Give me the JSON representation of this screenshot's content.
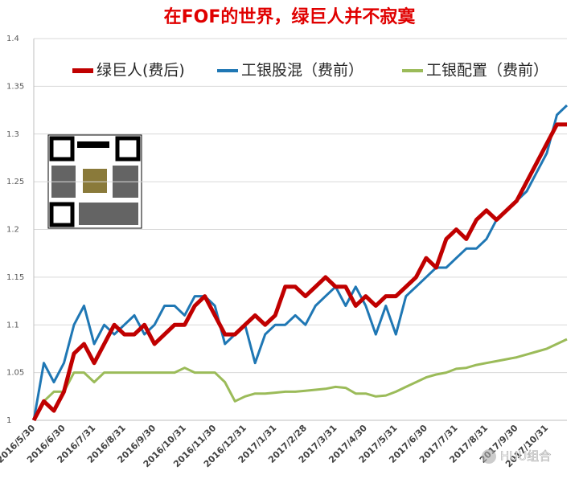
{
  "chart_data": {
    "type": "line",
    "title": "在FOF的世界，绿巨人并不寂寞",
    "watermark": "HUU组合",
    "x": [
      "2016/5/30",
      null,
      null,
      "2016/6/30",
      null,
      null,
      "2016/7/31",
      null,
      null,
      "2016/8/31",
      null,
      null,
      "2016/9/30",
      null,
      null,
      "2016/10/31",
      null,
      null,
      "2016/11/30",
      null,
      null,
      "2016/12/31",
      null,
      null,
      "2017/1/31",
      null,
      null,
      "2017/2/28",
      null,
      null,
      "2017/3/31",
      null,
      null,
      "2017/4/30",
      null,
      null,
      "2017/5/31",
      null,
      null,
      "2017/6/30",
      null,
      null,
      "2017/7/31",
      null,
      null,
      "2017/8/31",
      null,
      null,
      "2017/9/30",
      null,
      null,
      "2017/10/31",
      null,
      null
    ],
    "series": [
      {
        "name": "绿巨人(费后)",
        "color": "#c00000",
        "width": 5,
        "values": [
          1.0,
          1.02,
          1.01,
          1.03,
          1.07,
          1.08,
          1.06,
          1.08,
          1.1,
          1.09,
          1.09,
          1.1,
          1.08,
          1.09,
          1.1,
          1.1,
          1.12,
          1.13,
          1.11,
          1.09,
          1.09,
          1.1,
          1.11,
          1.1,
          1.11,
          1.14,
          1.14,
          1.13,
          1.14,
          1.15,
          1.14,
          1.14,
          1.12,
          1.13,
          1.12,
          1.13,
          1.13,
          1.14,
          1.15,
          1.17,
          1.16,
          1.19,
          1.2,
          1.19,
          1.21,
          1.22,
          1.21,
          1.22,
          1.23,
          1.25,
          1.27,
          1.29,
          1.31,
          1.31
        ]
      },
      {
        "name": "工银股混（费前）",
        "color": "#1f77b4",
        "width": 3,
        "values": [
          1.0,
          1.06,
          1.04,
          1.06,
          1.1,
          1.12,
          1.08,
          1.1,
          1.09,
          1.1,
          1.11,
          1.09,
          1.1,
          1.12,
          1.12,
          1.11,
          1.13,
          1.13,
          1.12,
          1.08,
          1.09,
          1.1,
          1.06,
          1.09,
          1.1,
          1.1,
          1.11,
          1.1,
          1.12,
          1.13,
          1.14,
          1.12,
          1.14,
          1.12,
          1.09,
          1.12,
          1.09,
          1.13,
          1.14,
          1.15,
          1.16,
          1.16,
          1.17,
          1.18,
          1.18,
          1.19,
          1.21,
          1.22,
          1.23,
          1.24,
          1.26,
          1.28,
          1.32,
          1.33
        ]
      },
      {
        "name": "工银配置（费前）",
        "color": "#9bbb59",
        "width": 3,
        "values": [
          1.0,
          1.02,
          1.03,
          1.03,
          1.05,
          1.05,
          1.04,
          1.05,
          1.05,
          1.05,
          1.05,
          1.05,
          1.05,
          1.05,
          1.05,
          1.055,
          1.05,
          1.05,
          1.05,
          1.04,
          1.02,
          1.025,
          1.028,
          1.028,
          1.029,
          1.03,
          1.03,
          1.031,
          1.032,
          1.033,
          1.035,
          1.034,
          1.028,
          1.028,
          1.025,
          1.026,
          1.03,
          1.035,
          1.04,
          1.045,
          1.048,
          1.05,
          1.054,
          1.055,
          1.058,
          1.06,
          1.062,
          1.064,
          1.066,
          1.069,
          1.072,
          1.075,
          1.08,
          1.085
        ]
      }
    ],
    "ylim": [
      1,
      1.4
    ],
    "yticks": [
      1,
      1.05,
      1.1,
      1.15,
      1.2,
      1.25,
      1.3,
      1.35,
      1.4
    ],
    "grid": true
  }
}
